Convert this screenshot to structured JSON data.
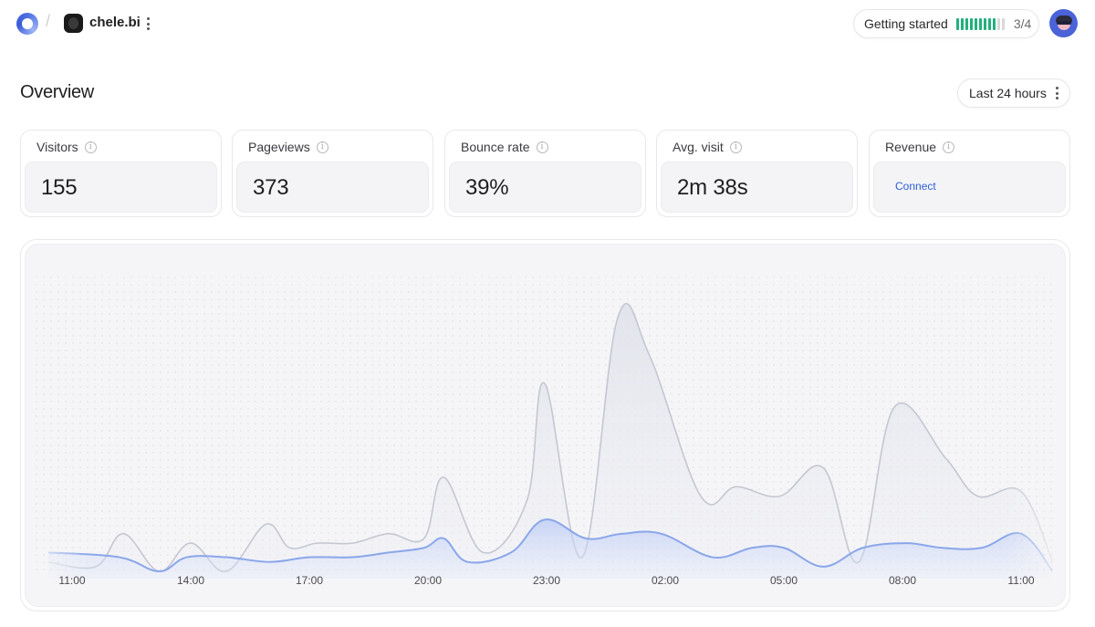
{
  "topbar": {
    "breadcrumb_separator": "/",
    "site_name": "chele.bi",
    "getting_started": {
      "label": "Getting started",
      "progress": "3/4",
      "progress_fraction": 0.75
    }
  },
  "overview": {
    "title": "Overview",
    "range_label": "Last 24 hours"
  },
  "stats": {
    "visitors": {
      "label": "Visitors",
      "value": "155"
    },
    "pageviews": {
      "label": "Pageviews",
      "value": "373"
    },
    "bounce_rate": {
      "label": "Bounce rate",
      "value": "39%"
    },
    "avg_visit": {
      "label": "Avg. visit",
      "value": "2m 38s"
    },
    "revenue": {
      "label": "Revenue",
      "action": "Connect"
    }
  },
  "colors": {
    "accent_green": "#22b07d",
    "accent_blue": "#2c5fd6",
    "visitors_line": "#8aa6ea",
    "pageviews_line": "#c4c7d2"
  },
  "icons": [
    "logo-icon",
    "site-favicon",
    "more-vertical-icon",
    "info-icon",
    "user-avatar"
  ],
  "chart_data": {
    "type": "area",
    "x_tick_labels": [
      "11:00",
      "14:00",
      "17:00",
      "20:00",
      "23:00",
      "02:00",
      "05:00",
      "08:00",
      "11:00"
    ],
    "x_tick_hours": [
      0,
      3,
      6,
      9,
      12,
      15,
      18,
      21,
      24
    ],
    "grid": "dotted",
    "legend": "none",
    "series": [
      {
        "values_hours": [
          -0.6,
          0.6,
          1.3,
          2.2,
          3.0,
          3.9,
          4.9,
          5.5,
          6.2,
          7.1,
          8.0,
          8.9,
          9.4,
          10.4,
          11.5,
          11.95,
          12.9,
          13.8,
          14.6,
          15.9,
          16.8,
          17.9,
          19.0,
          19.9,
          20.8,
          22.1,
          22.9,
          24.0,
          24.8
        ],
        "values": [
          2,
          1,
          8,
          0,
          6,
          0,
          10,
          5,
          6,
          6,
          8,
          7,
          20,
          4,
          15,
          40,
          3,
          54,
          46,
          16,
          18,
          16,
          22,
          2,
          35,
          24,
          16,
          17,
          2
        ]
      },
      {
        "values_hours": [
          -0.6,
          1.2,
          2.2,
          2.9,
          3.9,
          5.0,
          6.0,
          7.1,
          8.0,
          8.9,
          9.4,
          10.0,
          11.1,
          11.95,
          13.0,
          13.9,
          14.9,
          16.2,
          17.2,
          18.0,
          19.0,
          20.0,
          21.1,
          22.0,
          23.0,
          24.0,
          24.8
        ],
        "values": [
          4,
          3,
          0,
          3,
          3,
          2,
          3,
          3,
          4,
          5,
          7,
          2,
          4,
          11,
          7,
          8,
          8,
          3,
          5,
          5,
          1,
          5,
          6,
          5,
          5,
          8,
          0
        ]
      }
    ],
    "y_scale_note": "no y axis printed"
  }
}
